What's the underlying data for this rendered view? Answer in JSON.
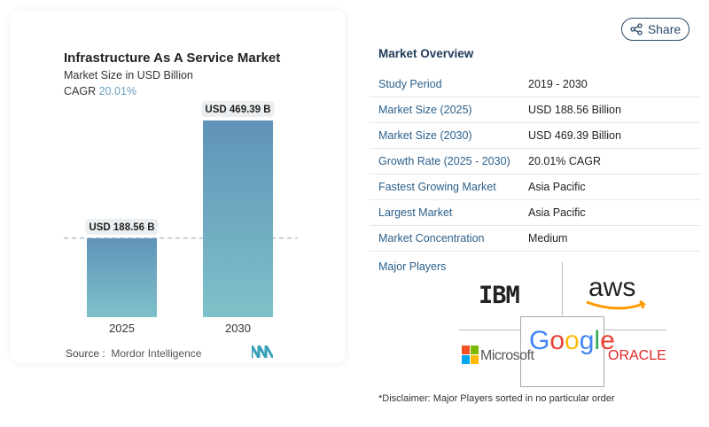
{
  "chart_data": {
    "type": "bar",
    "title": "Infrastructure As A Service Market",
    "subtitle": "Market Size in USD Billion",
    "cagr_label": "CAGR",
    "cagr_value": "20.01%",
    "categories": [
      "2025",
      "2030"
    ],
    "values": [
      188.56,
      469.39
    ],
    "data_labels": [
      "USD 188.56 B",
      "USD 469.39 B"
    ],
    "bar_color_top": "#5f93b8",
    "bar_color_bottom": "#7fc1c9",
    "reference_line": "dashed at 2025 value",
    "grid": false,
    "source_label": "Source :",
    "source": "Mordor Intelligence"
  },
  "share": {
    "label": "Share",
    "icon": "share-icon"
  },
  "overview": {
    "title": "Market Overview",
    "rows": [
      {
        "k": "Study Period",
        "v": "2019 - 2030"
      },
      {
        "k": "Market Size (2025)",
        "v": "USD 188.56 Billion"
      },
      {
        "k": "Market Size (2030)",
        "v": "USD 469.39 Billion"
      },
      {
        "k": "Growth Rate (2025 - 2030)",
        "v": "20.01% CAGR"
      },
      {
        "k": "Fastest Growing Market",
        "v": "Asia Pacific"
      },
      {
        "k": "Largest Market",
        "v": "Asia Pacific"
      },
      {
        "k": "Market Concentration",
        "v": "Medium"
      }
    ],
    "major_players_label": "Major Players",
    "players": [
      "IBM",
      "aws",
      "Microsoft",
      "Google",
      "ORACLE"
    ],
    "disclaimer": "*Disclaimer: Major Players sorted in no particular order"
  }
}
